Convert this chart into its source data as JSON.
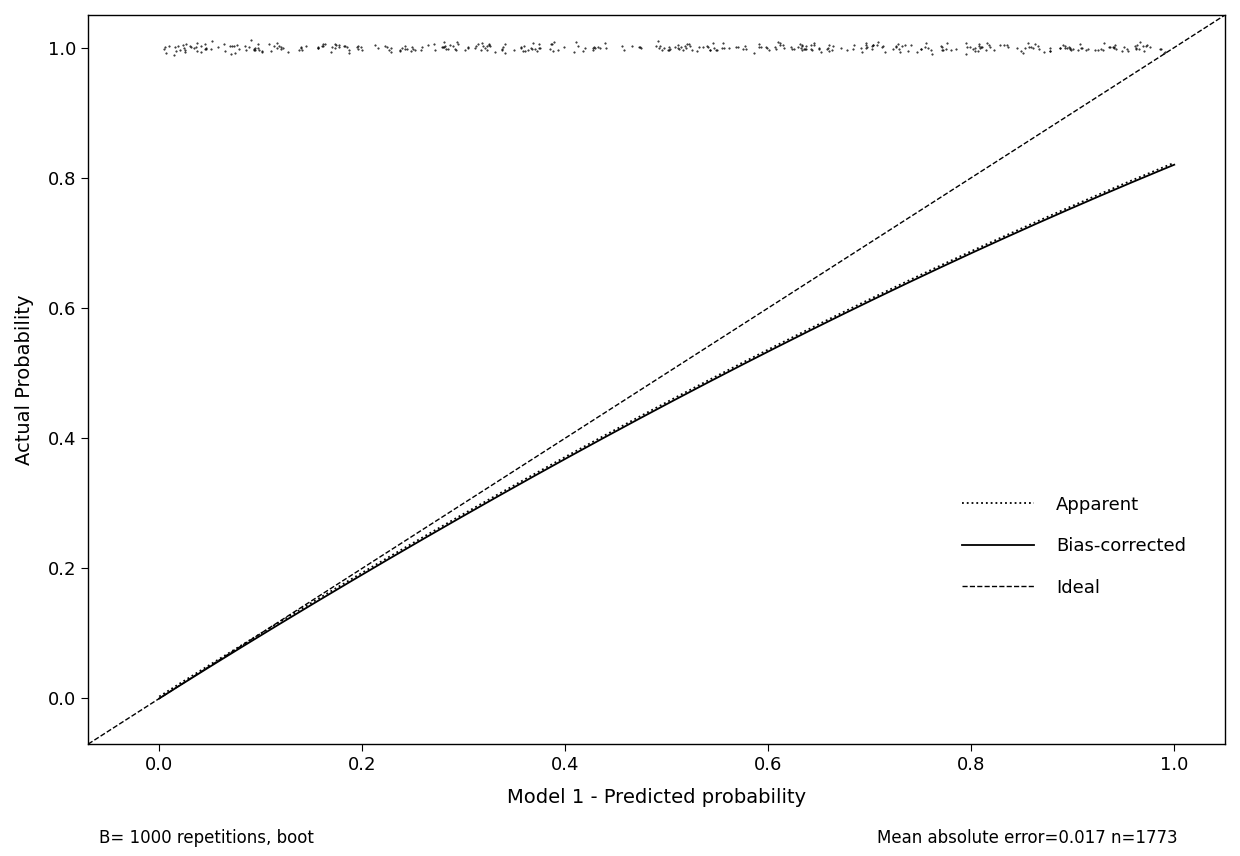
{
  "xlabel": "Model 1 - Predicted probability",
  "ylabel": "Actual Probability",
  "xlim": [
    -0.07,
    1.05
  ],
  "ylim": [
    -0.07,
    1.05
  ],
  "xticks": [
    0.0,
    0.2,
    0.4,
    0.6,
    0.8,
    1.0
  ],
  "yticks": [
    0.0,
    0.2,
    0.4,
    0.6,
    0.8,
    1.0
  ],
  "footnote_left": "B= 1000 repetitions, boot",
  "footnote_right": "Mean absolute error=0.017 n=1773",
  "legend_labels": [
    "Apparent",
    "Bias-corrected",
    "Ideal"
  ],
  "background_color": "#ffffff",
  "line_color": "#000000",
  "fig_width": 12.4,
  "fig_height": 8.56,
  "dpi": 100
}
